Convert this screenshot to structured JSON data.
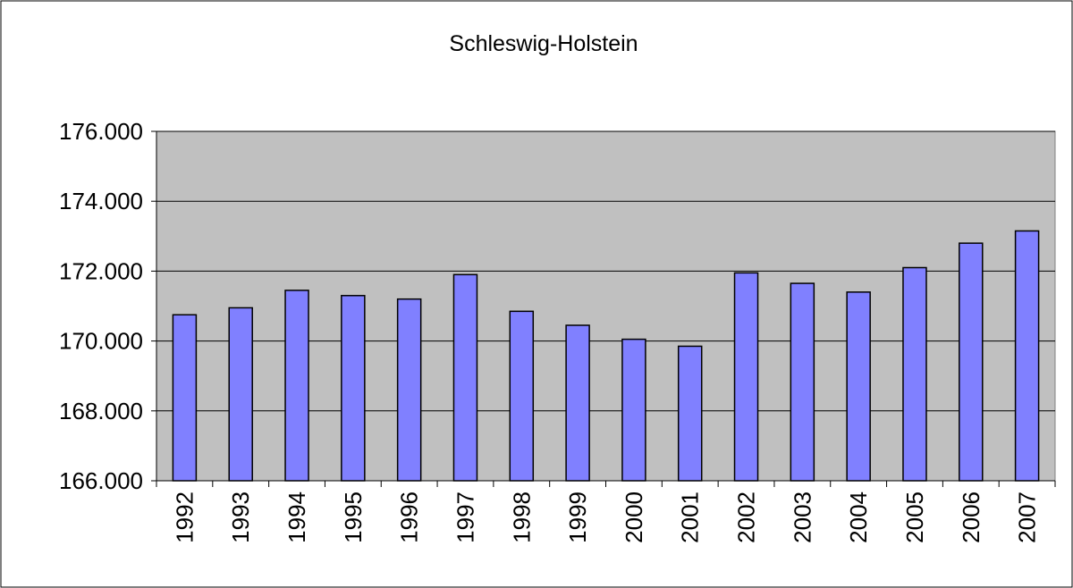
{
  "chart_data": {
    "type": "bar",
    "title": "Schleswig-Holstein",
    "categories": [
      "1992",
      "1993",
      "1994",
      "1995",
      "1996",
      "1997",
      "1998",
      "1999",
      "2000",
      "2001",
      "2002",
      "2003",
      "2004",
      "2005",
      "2006",
      "2007"
    ],
    "values": [
      170750,
      170950,
      171450,
      171300,
      171200,
      171900,
      170850,
      170450,
      170050,
      169850,
      171950,
      171650,
      171400,
      172100,
      172800,
      173150
    ],
    "color": "#8080ff",
    "ylim": [
      166000,
      176000
    ],
    "yticks": [
      {
        "value": 166000,
        "label": "166.000"
      },
      {
        "value": 168000,
        "label": "168.000"
      },
      {
        "value": 170000,
        "label": "170.000"
      },
      {
        "value": 172000,
        "label": "172.000"
      },
      {
        "value": 174000,
        "label": "174.000"
      },
      {
        "value": 176000,
        "label": "176.000"
      }
    ],
    "grid": true
  }
}
